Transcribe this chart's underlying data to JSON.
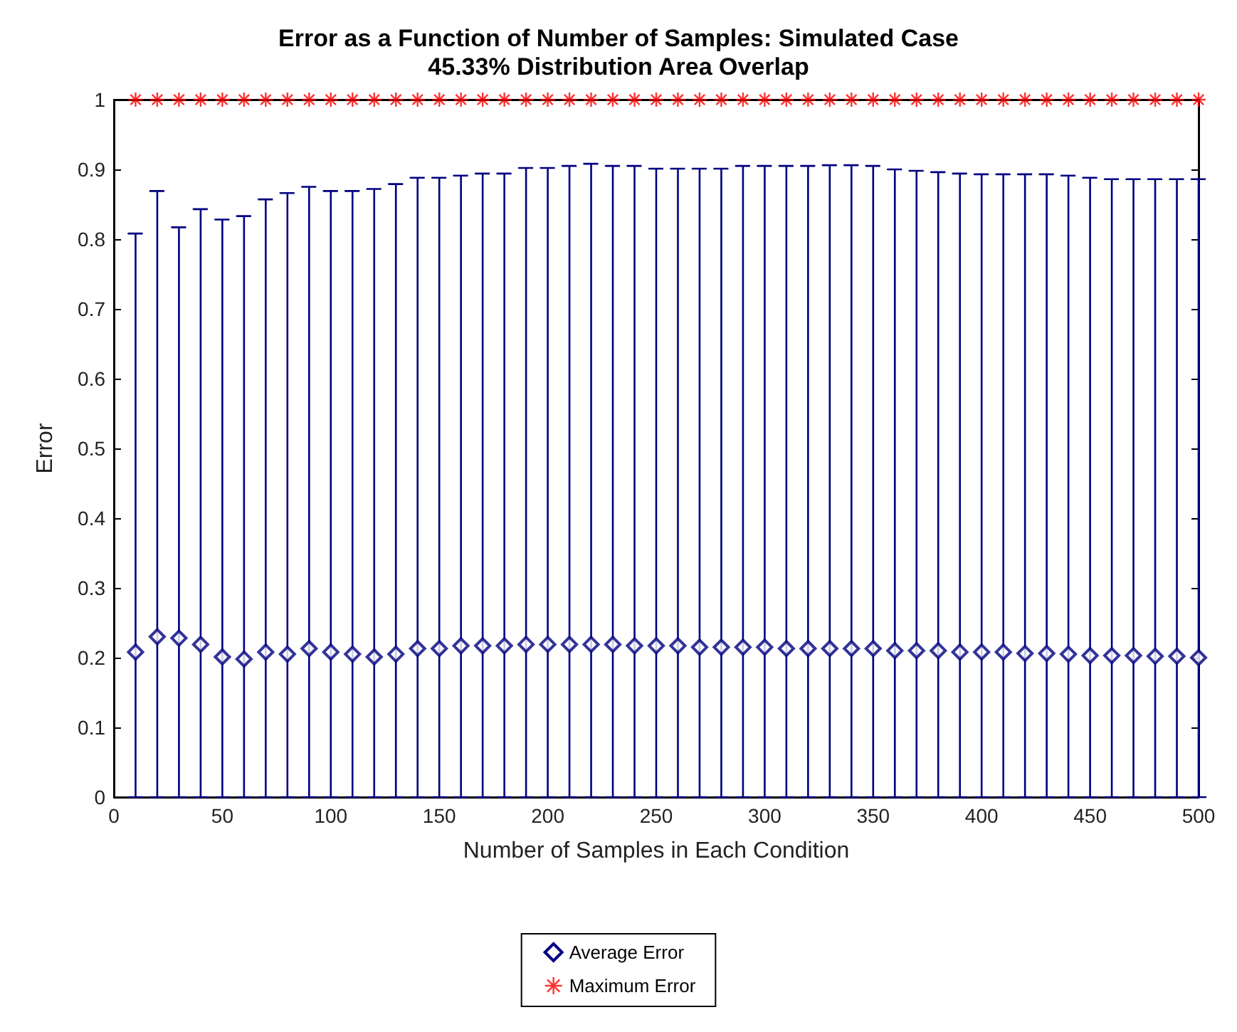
{
  "chart_data": {
    "type": "scatter",
    "title": "Error as a Function of Number of Samples: Simulated Case\n45.33% Distribution Area Overlap",
    "xlabel": "Number of Samples in Each Condition",
    "ylabel": "Error",
    "x": [
      10,
      20,
      30,
      40,
      50,
      60,
      70,
      80,
      90,
      100,
      110,
      120,
      130,
      140,
      150,
      160,
      170,
      180,
      190,
      200,
      210,
      220,
      230,
      240,
      250,
      260,
      270,
      280,
      290,
      300,
      310,
      320,
      330,
      340,
      350,
      360,
      370,
      380,
      390,
      400,
      410,
      420,
      430,
      440,
      450,
      460,
      470,
      480,
      490,
      500
    ],
    "series": [
      {
        "name": "Average Error",
        "color": "#000080",
        "marker": "diamond",
        "values": [
          0.208,
          0.23,
          0.228,
          0.219,
          0.201,
          0.198,
          0.208,
          0.205,
          0.213,
          0.208,
          0.205,
          0.201,
          0.205,
          0.213,
          0.213,
          0.217,
          0.217,
          0.217,
          0.219,
          0.219,
          0.219,
          0.219,
          0.219,
          0.217,
          0.217,
          0.217,
          0.215,
          0.215,
          0.215,
          0.215,
          0.213,
          0.213,
          0.213,
          0.213,
          0.213,
          0.21,
          0.21,
          0.21,
          0.208,
          0.208,
          0.208,
          0.206,
          0.206,
          0.205,
          0.203,
          0.203,
          0.203,
          0.202,
          0.202,
          0.2
        ],
        "errors": [
          [
            0,
            0.808
          ],
          [
            0,
            0.869
          ],
          [
            0,
            0.817
          ],
          [
            0,
            0.843
          ],
          [
            0,
            0.828
          ],
          [
            0,
            0.833
          ],
          [
            0,
            0.857
          ],
          [
            0,
            0.866
          ],
          [
            0,
            0.875
          ],
          [
            0,
            0.869
          ],
          [
            0,
            0.869
          ],
          [
            0,
            0.872
          ],
          [
            0,
            0.879
          ],
          [
            0,
            0.888
          ],
          [
            0,
            0.888
          ],
          [
            0,
            0.891
          ],
          [
            0,
            0.894
          ],
          [
            0,
            0.894
          ],
          [
            0,
            0.902
          ],
          [
            0,
            0.902
          ],
          [
            0,
            0.905
          ],
          [
            0,
            0.908
          ],
          [
            0,
            0.905
          ],
          [
            0,
            0.905
          ],
          [
            0,
            0.901
          ],
          [
            0,
            0.901
          ],
          [
            0,
            0.901
          ],
          [
            0,
            0.901
          ],
          [
            0,
            0.905
          ],
          [
            0,
            0.905
          ],
          [
            0,
            0.905
          ],
          [
            0,
            0.905
          ],
          [
            0,
            0.906
          ],
          [
            0,
            0.906
          ],
          [
            0,
            0.905
          ],
          [
            0,
            0.9
          ],
          [
            0,
            0.898
          ],
          [
            0,
            0.896
          ],
          [
            0,
            0.894
          ],
          [
            0,
            0.893
          ],
          [
            0,
            0.893
          ],
          [
            0,
            0.893
          ],
          [
            0,
            0.893
          ],
          [
            0,
            0.891
          ],
          [
            0,
            0.888
          ],
          [
            0,
            0.886
          ],
          [
            0,
            0.886
          ],
          [
            0,
            0.886
          ],
          [
            0,
            0.886
          ],
          [
            0,
            0.886
          ]
        ]
      },
      {
        "name": "Maximum Error",
        "color": "#ff0000",
        "marker": "cross",
        "values": [
          1,
          1,
          1,
          1,
          1,
          1,
          1,
          1,
          1,
          1,
          1,
          1,
          1,
          1,
          1,
          1,
          1,
          1,
          1,
          1,
          1,
          1,
          1,
          1,
          1,
          1,
          1,
          1,
          1,
          1,
          1,
          1,
          1,
          1,
          1,
          1,
          1,
          1,
          1,
          1,
          1,
          1,
          1,
          1,
          1,
          1,
          1,
          1,
          1,
          1
        ]
      }
    ],
    "xlim": [
      0,
      500
    ],
    "xticks": [
      0,
      50,
      100,
      150,
      200,
      250,
      300,
      350,
      400,
      450,
      500
    ],
    "ylim": [
      0,
      1
    ],
    "yticks": [
      0,
      0.1,
      0.2,
      0.3,
      0.4,
      0.5,
      0.6,
      0.7,
      0.8,
      0.9,
      1
    ],
    "legend": "bottom"
  }
}
